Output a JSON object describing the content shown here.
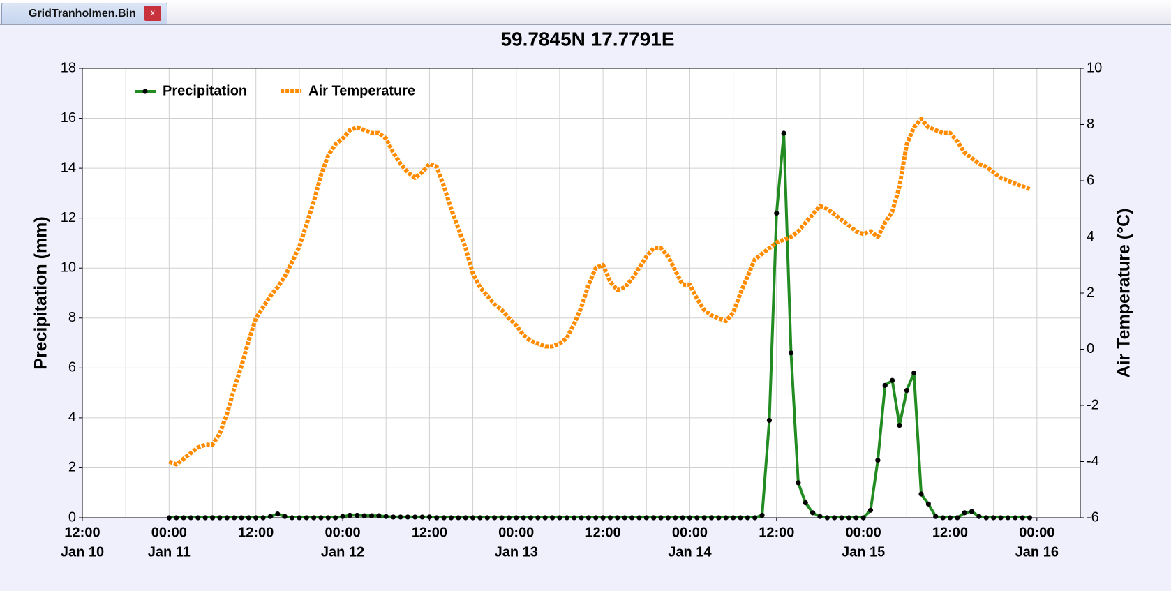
{
  "tab": {
    "label": "GridTranholmen.Bin",
    "close": "x"
  },
  "chart_data": {
    "type": "line",
    "title": "59.7845N 17.7791E",
    "y_label": "Precipitation (mm)",
    "y2_label": "Air Temperature (°C)",
    "legend": "upper left",
    "grid": true,
    "xlim": [
      "Jan 10 12:00",
      "Jan 16 06:00"
    ],
    "xticks": [
      {
        "value": "Jan 10 12:00",
        "label": "12:00",
        "date": "Jan 10"
      },
      {
        "value": "Jan 11 00:00",
        "label": "00:00",
        "date": "Jan 11"
      },
      {
        "value": "Jan 11 12:00",
        "label": "12:00"
      },
      {
        "value": "Jan 12 00:00",
        "label": "00:00",
        "date": "Jan 12"
      },
      {
        "value": "Jan 12 12:00",
        "label": "12:00"
      },
      {
        "value": "Jan 13 00:00",
        "label": "00:00",
        "date": "Jan 13"
      },
      {
        "value": "Jan 13 12:00",
        "label": "12:00"
      },
      {
        "value": "Jan 14 00:00",
        "label": "00:00",
        "date": "Jan 14"
      },
      {
        "value": "Jan 14 12:00",
        "label": "12:00"
      },
      {
        "value": "Jan 15 00:00",
        "label": "00:00",
        "date": "Jan 15"
      },
      {
        "value": "Jan 15 12:00",
        "label": "12:00"
      },
      {
        "value": "Jan 16 00:00",
        "label": "00:00",
        "date": "Jan 16"
      }
    ],
    "xminorticks": [
      "Jan 10 18:00",
      "Jan 11 06:00",
      "Jan 11 18:00",
      "Jan 12 06:00",
      "Jan 12 18:00",
      "Jan 13 06:00",
      "Jan 13 18:00",
      "Jan 14 06:00",
      "Jan 14 18:00",
      "Jan 15 06:00",
      "Jan 15 18:00"
    ],
    "ylim": [
      0,
      18
    ],
    "yticks": [
      0,
      2,
      4,
      6,
      8,
      10,
      12,
      14,
      16,
      18
    ],
    "y2lim": [
      -6,
      10
    ],
    "y2ticks": [
      -6,
      -4,
      -2,
      0,
      2,
      4,
      6,
      8,
      10
    ],
    "x": [
      "Jan 11 00:00",
      "Jan 11 01:00",
      "Jan 11 02:00",
      "Jan 11 03:00",
      "Jan 11 04:00",
      "Jan 11 05:00",
      "Jan 11 06:00",
      "Jan 11 07:00",
      "Jan 11 08:00",
      "Jan 11 09:00",
      "Jan 11 10:00",
      "Jan 11 11:00",
      "Jan 11 12:00",
      "Jan 11 13:00",
      "Jan 11 14:00",
      "Jan 11 15:00",
      "Jan 11 16:00",
      "Jan 11 17:00",
      "Jan 11 18:00",
      "Jan 11 19:00",
      "Jan 11 20:00",
      "Jan 11 21:00",
      "Jan 11 22:00",
      "Jan 11 23:00",
      "Jan 12 00:00",
      "Jan 12 01:00",
      "Jan 12 02:00",
      "Jan 12 03:00",
      "Jan 12 04:00",
      "Jan 12 05:00",
      "Jan 12 06:00",
      "Jan 12 07:00",
      "Jan 12 08:00",
      "Jan 12 09:00",
      "Jan 12 10:00",
      "Jan 12 11:00",
      "Jan 12 12:00",
      "Jan 12 13:00",
      "Jan 12 14:00",
      "Jan 12 15:00",
      "Jan 12 16:00",
      "Jan 12 17:00",
      "Jan 12 18:00",
      "Jan 12 19:00",
      "Jan 12 20:00",
      "Jan 12 21:00",
      "Jan 12 22:00",
      "Jan 12 23:00",
      "Jan 13 00:00",
      "Jan 13 01:00",
      "Jan 13 02:00",
      "Jan 13 03:00",
      "Jan 13 04:00",
      "Jan 13 05:00",
      "Jan 13 06:00",
      "Jan 13 07:00",
      "Jan 13 08:00",
      "Jan 13 09:00",
      "Jan 13 10:00",
      "Jan 13 11:00",
      "Jan 13 12:00",
      "Jan 13 13:00",
      "Jan 13 14:00",
      "Jan 13 15:00",
      "Jan 13 16:00",
      "Jan 13 17:00",
      "Jan 13 18:00",
      "Jan 13 19:00",
      "Jan 13 20:00",
      "Jan 13 21:00",
      "Jan 13 22:00",
      "Jan 13 23:00",
      "Jan 14 00:00",
      "Jan 14 01:00",
      "Jan 14 02:00",
      "Jan 14 03:00",
      "Jan 14 04:00",
      "Jan 14 05:00",
      "Jan 14 06:00",
      "Jan 14 07:00",
      "Jan 14 08:00",
      "Jan 14 09:00",
      "Jan 14 10:00",
      "Jan 14 11:00",
      "Jan 14 12:00",
      "Jan 14 13:00",
      "Jan 14 14:00",
      "Jan 14 15:00",
      "Jan 14 16:00",
      "Jan 14 17:00",
      "Jan 14 18:00",
      "Jan 14 19:00",
      "Jan 14 20:00",
      "Jan 14 21:00",
      "Jan 14 22:00",
      "Jan 14 23:00",
      "Jan 15 00:00",
      "Jan 15 01:00",
      "Jan 15 02:00",
      "Jan 15 03:00",
      "Jan 15 04:00",
      "Jan 15 05:00",
      "Jan 15 06:00",
      "Jan 15 07:00",
      "Jan 15 08:00",
      "Jan 15 09:00",
      "Jan 15 10:00",
      "Jan 15 11:00",
      "Jan 15 12:00",
      "Jan 15 13:00",
      "Jan 15 14:00",
      "Jan 15 15:00",
      "Jan 15 16:00",
      "Jan 15 17:00",
      "Jan 15 18:00",
      "Jan 15 19:00",
      "Jan 15 20:00",
      "Jan 15 21:00",
      "Jan 15 22:00",
      "Jan 15 23:00"
    ],
    "series": [
      {
        "name": "Precipitation",
        "color": "#228b22",
        "marker": true,
        "values": [
          0,
          0,
          0,
          0,
          0,
          0,
          0,
          0,
          0,
          0,
          0,
          0,
          0,
          0,
          0.05,
          0.15,
          0.05,
          0,
          0,
          0,
          0,
          0,
          0,
          0,
          0.05,
          0.1,
          0.1,
          0.08,
          0.08,
          0.08,
          0.05,
          0.03,
          0.03,
          0.03,
          0.03,
          0.03,
          0.03,
          0,
          0,
          0,
          0,
          0,
          0,
          0,
          0,
          0,
          0,
          0,
          0,
          0,
          0,
          0,
          0,
          0,
          0,
          0,
          0,
          0,
          0,
          0,
          0,
          0,
          0,
          0,
          0,
          0,
          0,
          0,
          0,
          0,
          0,
          0,
          0,
          0,
          0,
          0,
          0,
          0,
          0,
          0,
          0,
          0,
          0.1,
          3.9,
          12.2,
          15.4,
          6.6,
          1.4,
          0.6,
          0.2,
          0.05,
          0,
          0,
          0,
          0,
          0,
          0,
          0.3,
          2.3,
          5.3,
          5.5,
          3.7,
          5.1,
          5.8,
          0.95,
          0.55,
          0.05,
          0,
          0,
          0,
          0.2,
          0.25,
          0.05,
          0,
          0,
          0,
          0,
          0,
          0,
          0
        ]
      },
      {
        "name": "Air Temperature",
        "color": "#ff8c00",
        "axis": "y2",
        "dashed": true,
        "values": [
          -4.0,
          -4.1,
          -3.9,
          -3.7,
          -3.5,
          -3.4,
          -3.4,
          -3.0,
          -2.3,
          -1.4,
          -0.6,
          0.3,
          1.1,
          1.5,
          1.9,
          2.2,
          2.6,
          3.1,
          3.65,
          4.45,
          5.25,
          6.2,
          6.9,
          7.3,
          7.5,
          7.8,
          7.9,
          7.8,
          7.7,
          7.7,
          7.5,
          7.0,
          6.6,
          6.3,
          6.1,
          6.3,
          6.6,
          6.5,
          5.8,
          5.0,
          4.3,
          3.6,
          2.7,
          2.2,
          1.9,
          1.6,
          1.4,
          1.1,
          0.85,
          0.5,
          0.3,
          0.2,
          0.1,
          0.1,
          0.2,
          0.4,
          0.9,
          1.5,
          2.3,
          2.9,
          3.0,
          2.4,
          2.1,
          2.2,
          2.5,
          2.9,
          3.3,
          3.6,
          3.6,
          3.3,
          2.8,
          2.3,
          2.3,
          1.8,
          1.4,
          1.2,
          1.1,
          1.0,
          1.3,
          2.0,
          2.6,
          3.2,
          3.4,
          3.6,
          3.8,
          3.9,
          4.0,
          4.2,
          4.5,
          4.8,
          5.1,
          5.0,
          4.8,
          4.6,
          4.4,
          4.2,
          4.1,
          4.2,
          4.0,
          4.5,
          4.9,
          5.8,
          7.3,
          7.9,
          8.2,
          7.9,
          7.8,
          7.7,
          7.7,
          7.4,
          7.0,
          6.8,
          6.6,
          6.5,
          6.3,
          6.1,
          6.0,
          5.9,
          5.8,
          5.7
        ]
      }
    ]
  }
}
